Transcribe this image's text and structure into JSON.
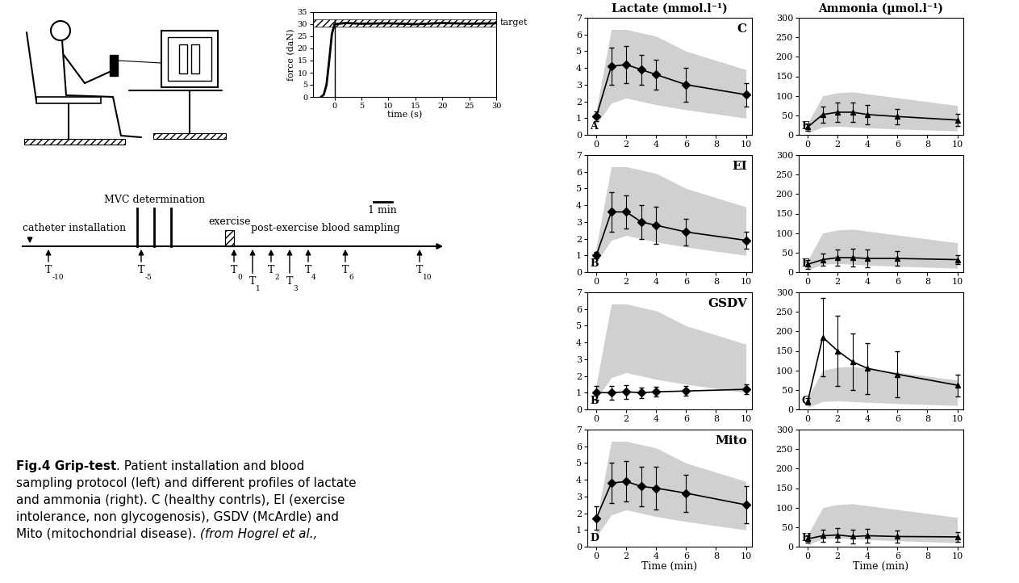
{
  "caption": {
    "lines": [
      [
        {
          "text": "Fig.4 Grip-test",
          "style": "bold"
        },
        {
          "text": ". Patient installation and blood"
        }
      ],
      [
        {
          "text": "sampling protocol (left) and different profiles of lactate"
        }
      ],
      [
        {
          "text": "and ammonia (right). C (healthy contrls), EI (exercise"
        }
      ],
      [
        {
          "text": "intolerance, non glycogenosis), GSDV (McArdle) and"
        }
      ],
      [
        {
          "text": "Mito (mitochondrial disease)."
        },
        {
          "text": " (from Hogrel et al.,",
          "style": "italic"
        }
      ]
    ]
  },
  "timeline": {
    "catheter": {
      "label": "catheter installation",
      "time": -11
    },
    "mvc": {
      "label": "MVC determination",
      "times": [
        -5.2,
        -4.3,
        -3.4
      ]
    },
    "exercise": {
      "label": "exercise",
      "start": -0.5,
      "end": 0
    },
    "scale_bar": {
      "label": "1 min",
      "minutes": 1
    },
    "post_exercise_label": "post-exercise blood sampling",
    "samples": [
      {
        "base": "T",
        "sub": "-10",
        "time": -10
      },
      {
        "base": "T",
        "sub": "-5",
        "time": -5
      },
      {
        "base": "T",
        "sub": "0",
        "time": 0
      },
      {
        "base": "T",
        "sub": "1",
        "time": 1
      },
      {
        "base": "T",
        "sub": "2",
        "time": 2
      },
      {
        "base": "T",
        "sub": "3",
        "time": 3
      },
      {
        "base": "T",
        "sub": "4",
        "time": 4
      },
      {
        "base": "T",
        "sub": "6",
        "time": 6
      },
      {
        "base": "T",
        "sub": "10",
        "time": 10
      }
    ]
  },
  "chart_data": [
    {
      "type": "line",
      "xlabel": "time (s)",
      "ylabel": "force (daN)",
      "x": [
        -2.5,
        -2,
        -1.5,
        -1,
        -0.5,
        0,
        2,
        5,
        10,
        15,
        20,
        25,
        30
      ],
      "values": [
        0,
        1,
        5,
        15,
        26,
        30,
        30.5,
        30.2,
        30.4,
        30,
        30.5,
        30.2,
        30.4
      ],
      "onset": 0,
      "target": {
        "label": "target",
        "range": [
          29,
          32
        ]
      },
      "color": "#000000",
      "marker": "none",
      "line_style": "solid",
      "xlim": [
        -4,
        30
      ],
      "xticks": [
        0,
        5,
        10,
        15,
        20,
        25,
        30
      ],
      "ylim": [
        0,
        35
      ],
      "yticks": [
        0,
        5,
        10,
        15,
        20,
        25,
        30,
        35
      ]
    },
    {
      "type": "line",
      "title": "Lactate (mmol.l⁻¹)",
      "panel": "A",
      "label": "C",
      "x": [
        0,
        1,
        2,
        3,
        4,
        6,
        10
      ],
      "values": [
        1.1,
        4.1,
        4.2,
        3.9,
        3.6,
        3.0,
        2.4
      ],
      "errors": [
        0.3,
        1.1,
        1.1,
        0.9,
        0.9,
        1.0,
        0.7
      ],
      "band": {
        "lower": [
          0.6,
          1.9,
          2.2,
          2.0,
          1.8,
          1.5,
          1.0
        ],
        "upper": [
          1.5,
          6.3,
          6.3,
          6.1,
          5.9,
          5.0,
          3.9
        ],
        "color": "#d0d0d0"
      },
      "color": "#000000",
      "marker": "diamond",
      "line_style": "solid",
      "xlim": [
        -0.6,
        10.4
      ],
      "xticks": [
        0,
        2,
        4,
        6,
        8,
        10
      ],
      "ylim": [
        0,
        7
      ],
      "yticks": [
        0,
        1,
        2,
        3,
        4,
        5,
        6,
        7
      ]
    },
    {
      "type": "line",
      "title": "Ammonia (µmol.l⁻¹)",
      "panel": "E",
      "x": [
        0,
        1,
        2,
        3,
        4,
        6,
        10
      ],
      "values": [
        20,
        52,
        58,
        58,
        52,
        47,
        38
      ],
      "errors": [
        10,
        20,
        25,
        25,
        25,
        20,
        15
      ],
      "band": {
        "lower": [
          5,
          20,
          22,
          20,
          18,
          15,
          10
        ],
        "upper": [
          30,
          100,
          108,
          110,
          105,
          95,
          75
        ],
        "color": "#d0d0d0"
      },
      "color": "#000000",
      "marker": "triangle",
      "line_style": "solid",
      "xlim": [
        -0.6,
        10.4
      ],
      "xticks": [
        0,
        2,
        4,
        6,
        8,
        10
      ],
      "ylim": [
        0,
        300
      ],
      "yticks": [
        0,
        50,
        100,
        150,
        200,
        250,
        300
      ]
    },
    {
      "type": "line",
      "panel": "B",
      "label": "EI",
      "x": [
        0,
        1,
        2,
        3,
        4,
        6,
        10
      ],
      "values": [
        1.0,
        3.6,
        3.6,
        3.0,
        2.8,
        2.4,
        1.9
      ],
      "errors": [
        0.2,
        1.2,
        1.0,
        1.0,
        1.1,
        0.8,
        0.5
      ],
      "band": {
        "lower": [
          0.6,
          1.9,
          2.2,
          2.0,
          1.8,
          1.5,
          1.0
        ],
        "upper": [
          1.5,
          6.3,
          6.3,
          6.1,
          5.9,
          5.0,
          3.9
        ],
        "color": "#d0d0d0"
      },
      "color": "#000000",
      "marker": "diamond",
      "line_style": "solid",
      "xlim": [
        -0.6,
        10.4
      ],
      "xticks": [
        0,
        2,
        4,
        6,
        8,
        10
      ],
      "ylim": [
        0,
        7
      ],
      "yticks": [
        0,
        1,
        2,
        3,
        4,
        5,
        6,
        7
      ]
    },
    {
      "type": "line",
      "panel": "F",
      "x": [
        0,
        1,
        2,
        3,
        4,
        6,
        10
      ],
      "values": [
        20,
        32,
        37,
        37,
        35,
        35,
        32
      ],
      "errors": [
        12,
        15,
        20,
        22,
        22,
        18,
        12
      ],
      "band": {
        "lower": [
          5,
          20,
          22,
          20,
          18,
          15,
          10
        ],
        "upper": [
          30,
          100,
          108,
          110,
          105,
          95,
          75
        ],
        "color": "#d0d0d0"
      },
      "color": "#000000",
      "marker": "triangle",
      "line_style": "solid",
      "xlim": [
        -0.6,
        10.4
      ],
      "xticks": [
        0,
        2,
        4,
        6,
        8,
        10
      ],
      "ylim": [
        0,
        300
      ],
      "yticks": [
        0,
        50,
        100,
        150,
        200,
        250,
        300
      ]
    },
    {
      "type": "line",
      "panel": "B",
      "label": "GSDV",
      "x": [
        0,
        1,
        2,
        3,
        4,
        6,
        10
      ],
      "values": [
        1.0,
        1.0,
        1.05,
        1.0,
        1.05,
        1.1,
        1.2
      ],
      "errors": [
        0.4,
        0.4,
        0.4,
        0.3,
        0.3,
        0.3,
        0.3
      ],
      "band": {
        "lower": [
          0.6,
          1.9,
          2.2,
          2.0,
          1.8,
          1.5,
          1.0
        ],
        "upper": [
          1.5,
          6.3,
          6.3,
          6.1,
          5.9,
          5.0,
          3.9
        ],
        "color": "#d0d0d0"
      },
      "color": "#000000",
      "marker": "diamond",
      "line_style": "solid",
      "xlim": [
        -0.6,
        10.4
      ],
      "xticks": [
        0,
        2,
        4,
        6,
        8,
        10
      ],
      "ylim": [
        0,
        7
      ],
      "yticks": [
        0,
        1,
        2,
        3,
        4,
        5,
        6,
        7
      ]
    },
    {
      "type": "line",
      "panel": "G",
      "x": [
        0,
        1,
        2,
        3,
        4,
        6,
        10
      ],
      "values": [
        20,
        185,
        150,
        122,
        105,
        90,
        62
      ],
      "errors": [
        8,
        100,
        90,
        72,
        65,
        58,
        28
      ],
      "band": {
        "lower": [
          5,
          20,
          22,
          20,
          18,
          15,
          10
        ],
        "upper": [
          30,
          100,
          108,
          110,
          105,
          95,
          75
        ],
        "color": "#d0d0d0"
      },
      "color": "#000000",
      "marker": "triangle",
      "line_style": "solid",
      "xlim": [
        -0.6,
        10.4
      ],
      "xticks": [
        0,
        2,
        4,
        6,
        8,
        10
      ],
      "ylim": [
        0,
        300
      ],
      "yticks": [
        0,
        50,
        100,
        150,
        200,
        250,
        300
      ]
    },
    {
      "type": "line",
      "panel": "D",
      "label": "Mito",
      "xlabel": "Time (min)",
      "x": [
        0,
        1,
        2,
        3,
        4,
        6,
        10
      ],
      "values": [
        1.7,
        3.8,
        3.9,
        3.6,
        3.5,
        3.2,
        2.5
      ],
      "errors": [
        0.7,
        1.2,
        1.2,
        1.2,
        1.3,
        1.1,
        1.1
      ],
      "band": {
        "lower": [
          0.6,
          1.9,
          2.2,
          2.0,
          1.8,
          1.5,
          1.0
        ],
        "upper": [
          1.5,
          6.3,
          6.3,
          6.1,
          5.9,
          5.0,
          3.9
        ],
        "color": "#d0d0d0"
      },
      "color": "#000000",
      "marker": "diamond",
      "line_style": "solid",
      "xlim": [
        -0.6,
        10.4
      ],
      "xticks": [
        0,
        2,
        4,
        6,
        8,
        10
      ],
      "ylim": [
        0,
        7
      ],
      "yticks": [
        0,
        1,
        2,
        3,
        4,
        5,
        6,
        7
      ]
    },
    {
      "type": "line",
      "panel": "H",
      "xlabel": "Time (min)",
      "x": [
        0,
        1,
        2,
        3,
        4,
        6,
        10
      ],
      "values": [
        20,
        28,
        30,
        26,
        28,
        26,
        25
      ],
      "errors": [
        10,
        15,
        18,
        18,
        18,
        15,
        12
      ],
      "band": {
        "lower": [
          5,
          20,
          22,
          20,
          18,
          15,
          10
        ],
        "upper": [
          30,
          100,
          108,
          110,
          105,
          95,
          75
        ],
        "color": "#d0d0d0"
      },
      "color": "#000000",
      "marker": "triangle",
      "line_style": "solid",
      "xlim": [
        -0.6,
        10.4
      ],
      "xticks": [
        0,
        2,
        4,
        6,
        8,
        10
      ],
      "ylim": [
        0,
        300
      ],
      "yticks": [
        0,
        50,
        100,
        150,
        200,
        250,
        300
      ]
    }
  ]
}
